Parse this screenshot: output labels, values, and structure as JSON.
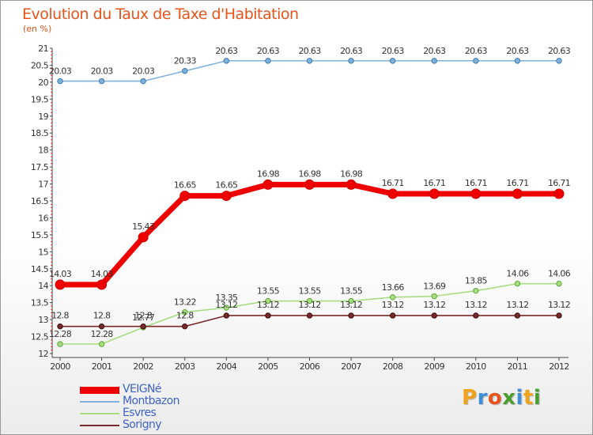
{
  "title": "Evolution du Taux de Taxe d'Habitation",
  "subtitle": "(en %)",
  "logo": {
    "letters": [
      "P",
      "r",
      "o",
      "x",
      "i",
      "t",
      "i"
    ],
    "colors": [
      "#f0a21b",
      "#3c8fd6",
      "#e8541c",
      "#4a9e2e",
      "#3c8fd6",
      "#f0a21b",
      "#4a9e2e"
    ]
  },
  "chart_data": {
    "type": "line",
    "x": [
      "2000",
      "2001",
      "2002",
      "2003",
      "2004",
      "2005",
      "2006",
      "2007",
      "2008",
      "2009",
      "2010",
      "2011",
      "2012"
    ],
    "ylim": [
      12,
      21
    ],
    "yticks": [
      "12",
      "12.5",
      "13",
      "13.5",
      "14",
      "14.5",
      "15",
      "15.5",
      "16",
      "16.5",
      "17",
      "17.5",
      "18",
      "18.5",
      "19",
      "19.5",
      "20",
      "20.5",
      "21"
    ],
    "grid": false,
    "legend_position": "bottom-left",
    "series": [
      {
        "name": "VEIGNé",
        "color": "#ee0000",
        "values": [
          14.03,
          14.03,
          15.43,
          16.65,
          16.65,
          16.98,
          16.98,
          16.98,
          16.71,
          16.71,
          16.71,
          16.71,
          16.71
        ],
        "labels": [
          "14.03",
          "14.03",
          "15.43",
          "16.65",
          "16.65",
          "16.98",
          "16.98",
          "16.98",
          "16.71",
          "16.71",
          "16.71",
          "16.71",
          "16.71"
        ]
      },
      {
        "name": "Montbazon",
        "color": "#7fb1dc",
        "values": [
          20.03,
          20.03,
          20.03,
          20.33,
          20.63,
          20.63,
          20.63,
          20.63,
          20.63,
          20.63,
          20.63,
          20.63,
          20.63
        ],
        "labels": [
          "20.03",
          "20.03",
          "20.03",
          "20.33",
          "20.63",
          "20.63",
          "20.63",
          "20.63",
          "20.63",
          "20.63",
          "20.63",
          "20.63",
          "20.63"
        ]
      },
      {
        "name": "Esvres",
        "color": "#a8dd82",
        "values": [
          12.28,
          12.28,
          12.77,
          13.22,
          13.35,
          13.55,
          13.55,
          13.55,
          13.66,
          13.69,
          13.85,
          14.06,
          14.06
        ],
        "labels": [
          "12.28",
          "12.28",
          "12.77",
          "13.22",
          "13.35",
          "13.55",
          "13.55",
          "13.55",
          "13.66",
          "13.69",
          "13.85",
          "14.06",
          "14.06"
        ]
      },
      {
        "name": "Sorigny",
        "color": "#7a2a2a",
        "values": [
          12.8,
          12.8,
          12.8,
          12.8,
          13.12,
          13.12,
          13.12,
          13.12,
          13.12,
          13.12,
          13.12,
          13.12,
          13.12
        ],
        "labels": [
          "12.8",
          "12.8",
          "12.8",
          "12.8",
          "13.12",
          "13.12",
          "13.12",
          "13.12",
          "13.12",
          "13.12",
          "13.12",
          "13.12",
          "13.12"
        ]
      }
    ]
  }
}
